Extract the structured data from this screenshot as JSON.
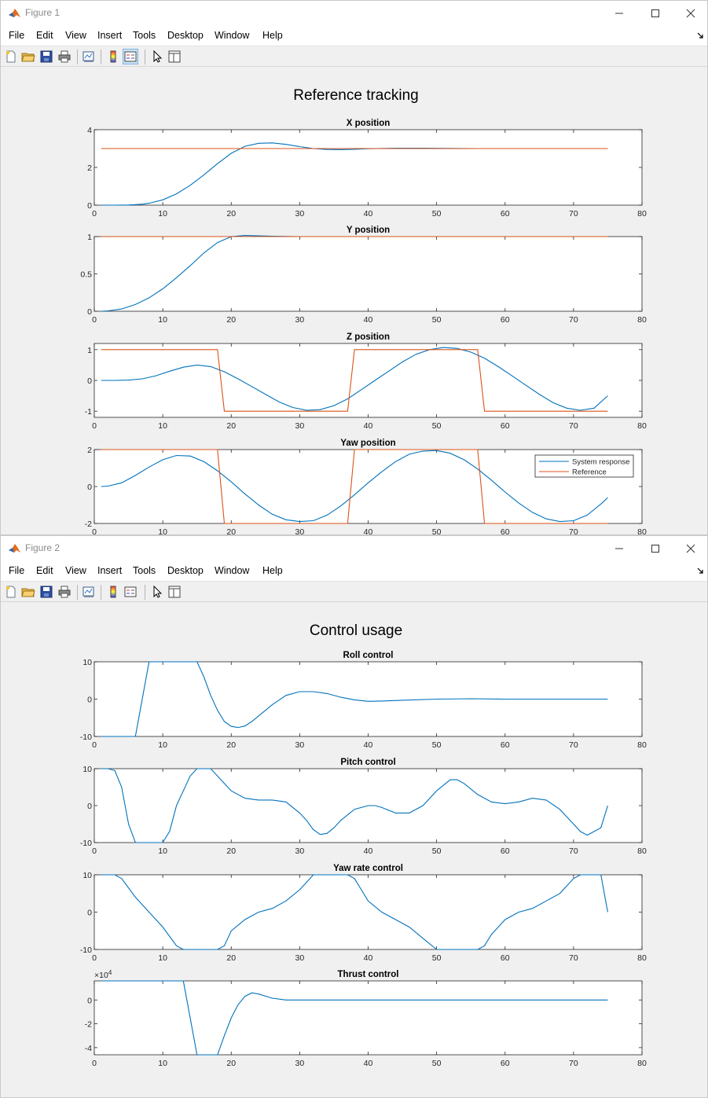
{
  "colors": {
    "blue": "#0072bd",
    "orange": "#d95319"
  },
  "windows": [
    {
      "title": "Figure 1",
      "menu": [
        "File",
        "Edit",
        "View",
        "Insert",
        "Tools",
        "Desktop",
        "Window",
        "Help"
      ],
      "suptitle": "Reference tracking",
      "legend": {
        "entries": [
          "System response",
          "Reference"
        ],
        "location": "top-right of Yaw position axes"
      },
      "chart_data": [
        {
          "type": "line",
          "title": "X position",
          "xlim": [
            0,
            80
          ],
          "ylim": [
            0,
            4
          ],
          "xticks": [
            "0",
            "10",
            "20",
            "30",
            "40",
            "50",
            "60",
            "70",
            "80"
          ],
          "yticks": [
            "0",
            "2",
            "4"
          ],
          "series": [
            {
              "name": "System response",
              "x": [
                1,
                3,
                5,
                7,
                8,
                10,
                12,
                14,
                16,
                18,
                20,
                22,
                24,
                26,
                28,
                30,
                32,
                34,
                36,
                38,
                40,
                44,
                48,
                52,
                56,
                60,
                65,
                70,
                75
              ],
              "y": [
                0,
                0,
                0.01,
                0.05,
                0.1,
                0.28,
                0.6,
                1.05,
                1.6,
                2.2,
                2.75,
                3.12,
                3.28,
                3.3,
                3.22,
                3.1,
                3,
                2.95,
                2.94,
                2.96,
                2.99,
                3.02,
                3.02,
                3.01,
                3,
                3,
                3,
                3,
                3
              ]
            },
            {
              "name": "Reference",
              "x": [
                1,
                75
              ],
              "y": [
                3,
                3
              ]
            }
          ]
        },
        {
          "type": "line",
          "title": "Y position",
          "xlim": [
            0,
            80
          ],
          "ylim": [
            0,
            1
          ],
          "xticks": [
            "0",
            "10",
            "20",
            "30",
            "40",
            "50",
            "60",
            "70",
            "80"
          ],
          "yticks": [
            "0",
            "0.5",
            "1"
          ],
          "series": [
            {
              "name": "System response",
              "x": [
                1,
                2,
                4,
                6,
                8,
                10,
                12,
                14,
                16,
                18,
                20,
                22,
                24,
                26,
                30,
                40,
                50,
                60,
                75
              ],
              "y": [
                0,
                0.005,
                0.03,
                0.09,
                0.18,
                0.3,
                0.45,
                0.61,
                0.78,
                0.92,
                1.0,
                1.015,
                1.01,
                1.005,
                1,
                1,
                1,
                1,
                1
              ]
            },
            {
              "name": "Reference",
              "x": [
                1,
                75
              ],
              "y": [
                1,
                1
              ]
            }
          ]
        },
        {
          "type": "line",
          "title": "Z position",
          "xlim": [
            0,
            80
          ],
          "ylim": [
            -1.2,
            1.2
          ],
          "xticks": [
            "0",
            "10",
            "20",
            "30",
            "40",
            "50",
            "60",
            "70",
            "80"
          ],
          "yticks": [
            "-1",
            "0",
            "1"
          ],
          "series": [
            {
              "name": "System response",
              "x": [
                1,
                3,
                5,
                7,
                9,
                11,
                13,
                15,
                17,
                19,
                21,
                23,
                25,
                27,
                29,
                31,
                33,
                35,
                37,
                39,
                41,
                43,
                45,
                47,
                49,
                51,
                53,
                55,
                57,
                59,
                61,
                63,
                65,
                67,
                69,
                71,
                73,
                75
              ],
              "y": [
                0,
                0,
                0.01,
                0.05,
                0.15,
                0.3,
                0.43,
                0.5,
                0.45,
                0.28,
                0.05,
                -0.2,
                -0.45,
                -0.7,
                -0.88,
                -0.97,
                -0.95,
                -0.82,
                -0.6,
                -0.3,
                0,
                0.3,
                0.6,
                0.85,
                1.0,
                1.07,
                1.04,
                0.92,
                0.72,
                0.45,
                0.15,
                -0.15,
                -0.45,
                -0.72,
                -0.9,
                -0.97,
                -0.9,
                -0.5
              ]
            },
            {
              "name": "Reference",
              "x": [
                1,
                18,
                19,
                37,
                38,
                56,
                57,
                75
              ],
              "y": [
                1,
                1,
                -1,
                -1,
                1,
                1,
                -1,
                -1
              ]
            }
          ]
        },
        {
          "type": "line",
          "title": "Yaw position",
          "xlim": [
            0,
            80
          ],
          "ylim": [
            -2,
            2
          ],
          "xticks": [
            "0",
            "10",
            "20",
            "30",
            "40",
            "50",
            "60",
            "70",
            "80"
          ],
          "yticks": [
            "-2",
            "0",
            "2"
          ],
          "series": [
            {
              "name": "System response",
              "x": [
                1,
                2,
                4,
                6,
                8,
                10,
                12,
                14,
                16,
                18,
                20,
                22,
                24,
                26,
                28,
                30,
                32,
                34,
                36,
                38,
                40,
                42,
                44,
                46,
                48,
                50,
                52,
                54,
                56,
                58,
                60,
                62,
                64,
                66,
                68,
                70,
                72,
                74,
                75
              ],
              "y": [
                0,
                0.02,
                0.2,
                0.6,
                1.05,
                1.45,
                1.68,
                1.65,
                1.35,
                0.85,
                0.25,
                -0.4,
                -1,
                -1.5,
                -1.8,
                -1.9,
                -1.85,
                -1.55,
                -1.05,
                -0.45,
                0.2,
                0.8,
                1.35,
                1.75,
                1.92,
                1.95,
                1.8,
                1.45,
                0.95,
                0.35,
                -0.3,
                -0.9,
                -1.4,
                -1.75,
                -1.9,
                -1.85,
                -1.55,
                -0.95,
                -0.6
              ]
            },
            {
              "name": "Reference",
              "x": [
                1,
                18,
                19,
                37,
                38,
                56,
                57,
                75
              ],
              "y": [
                2,
                2,
                -2,
                -2,
                2,
                2,
                -2,
                -2
              ]
            }
          ]
        }
      ]
    },
    {
      "title": "Figure 2",
      "menu": [
        "File",
        "Edit",
        "View",
        "Insert",
        "Tools",
        "Desktop",
        "Window",
        "Help"
      ],
      "suptitle": "Control usage",
      "chart_data": [
        {
          "type": "line",
          "title": "Roll control",
          "xlim": [
            0,
            80
          ],
          "ylim": [
            -10,
            10
          ],
          "xticks": [
            "0",
            "10",
            "20",
            "30",
            "40",
            "50",
            "60",
            "70",
            "80"
          ],
          "yticks": [
            "-10",
            "0",
            "10"
          ],
          "series": [
            {
              "name": "",
              "x": [
                1,
                6,
                7,
                8,
                9,
                10,
                12,
                14,
                15,
                16,
                17,
                18,
                19,
                20,
                21,
                22,
                23,
                24,
                26,
                28,
                30,
                32,
                34,
                36,
                38,
                40,
                42,
                45,
                50,
                55,
                60,
                65,
                70,
                75
              ],
              "y": [
                -10,
                -10,
                0,
                10,
                10,
                10,
                10,
                10,
                10,
                6,
                1,
                -3,
                -6,
                -7.3,
                -7.6,
                -7.2,
                -6,
                -4.5,
                -1.5,
                1,
                2,
                2,
                1.5,
                0.5,
                -0.2,
                -0.6,
                -0.5,
                -0.3,
                0,
                0.1,
                0,
                0,
                0,
                0
              ]
            }
          ]
        },
        {
          "type": "line",
          "title": "Pitch control",
          "xlim": [
            0,
            80
          ],
          "ylim": [
            -10,
            10
          ],
          "xticks": [
            "0",
            "10",
            "20",
            "30",
            "40",
            "50",
            "60",
            "70",
            "80"
          ],
          "yticks": [
            "-10",
            "0",
            "10"
          ],
          "series": [
            {
              "name": "",
              "x": [
                1,
                2,
                3,
                4,
                5,
                6,
                8,
                10,
                11,
                12,
                13,
                14,
                15,
                16,
                17,
                18,
                19,
                20,
                22,
                24,
                26,
                28,
                30,
                31,
                32,
                33,
                34,
                35,
                36,
                38,
                40,
                41,
                42,
                44,
                46,
                48,
                50,
                52,
                53,
                54,
                56,
                58,
                60,
                62,
                64,
                66,
                68,
                70,
                71,
                72,
                74,
                75
              ],
              "y": [
                10,
                10,
                9.5,
                5,
                -5,
                -10,
                -10,
                -10,
                -7,
                0,
                4,
                8,
                10,
                10,
                10,
                8,
                6,
                4,
                2,
                1.5,
                1.5,
                1,
                -2,
                -4,
                -6.5,
                -7.8,
                -7.5,
                -6,
                -4,
                -1,
                0,
                0,
                -0.5,
                -2,
                -2,
                0,
                4,
                7,
                7,
                6,
                3,
                1,
                0.5,
                1,
                2,
                1.5,
                -1,
                -5,
                -7,
                -8,
                -6,
                0
              ]
            }
          ]
        },
        {
          "type": "line",
          "title": "Yaw rate control",
          "xlim": [
            0,
            80
          ],
          "ylim": [
            -10,
            10
          ],
          "xticks": [
            "0",
            "10",
            "20",
            "30",
            "40",
            "50",
            "60",
            "70",
            "80"
          ],
          "yticks": [
            "-10",
            "0",
            "10"
          ],
          "series": [
            {
              "name": "",
              "x": [
                1,
                3,
                4,
                6,
                8,
                10,
                12,
                13,
                16,
                18,
                19,
                20,
                22,
                24,
                26,
                28,
                30,
                31,
                32,
                34,
                36,
                37,
                38,
                39,
                40,
                42,
                44,
                46,
                48,
                50,
                51,
                52,
                54,
                56,
                57,
                58,
                60,
                62,
                64,
                66,
                68,
                70,
                71,
                74,
                75
              ],
              "y": [
                10,
                10,
                9,
                4,
                0,
                -4,
                -9,
                -10,
                -10,
                -10,
                -9,
                -5,
                -2,
                0,
                1,
                3,
                6,
                8,
                10,
                10,
                10,
                10,
                9,
                6,
                3,
                0,
                -2,
                -4,
                -7,
                -10,
                -10,
                -10,
                -10,
                -10,
                -9,
                -6,
                -2,
                0,
                1,
                3,
                5,
                9,
                10,
                10,
                0
              ]
            }
          ]
        },
        {
          "type": "line",
          "title": "Thrust control",
          "exponent_label": "×10",
          "exponent_power": "4",
          "xlim": [
            0,
            80
          ],
          "ylim": [
            -4.6,
            1.6
          ],
          "xticks": [
            "0",
            "10",
            "20",
            "30",
            "40",
            "50",
            "60",
            "70",
            "80"
          ],
          "yticks": [
            "-4",
            "-2",
            "0"
          ],
          "series": [
            {
              "name": "",
              "x": [
                1,
                13,
                14,
                15,
                16,
                17,
                18,
                19,
                20,
                21,
                22,
                23,
                24,
                26,
                28,
                30,
                35,
                40,
                50,
                60,
                70,
                75
              ],
              "y": [
                1.6,
                1.6,
                -1.5,
                -4.6,
                -4.6,
                -4.6,
                -4.6,
                -3,
                -1.5,
                -0.4,
                0.3,
                0.6,
                0.5,
                0.15,
                0,
                0,
                0,
                0,
                0,
                0,
                0,
                0
              ]
            }
          ]
        }
      ]
    }
  ]
}
